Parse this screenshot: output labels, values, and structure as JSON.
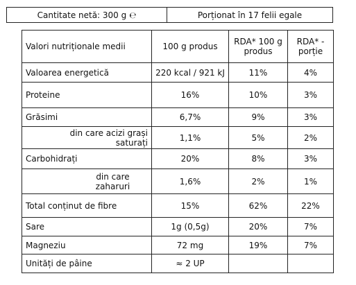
{
  "header": {
    "net_quantity": "Cantitate netă: 300 g ℮",
    "portions": "Porționat în 17 felii egale"
  },
  "table": {
    "columns": [
      "Valori nutriționale medii",
      "100 g produs",
      "RDA* 100 g produs",
      "RDA* - porție"
    ],
    "rows": [
      [
        "Valoarea energetică",
        "220 kcal / 921 kJ",
        "11%",
        "4%"
      ],
      [
        "Proteine",
        "16%",
        "10%",
        "3%"
      ],
      [
        "Grăsimi",
        "6,7%",
        "9%",
        "3%"
      ],
      [
        "din care acizi grași saturați",
        "1,1%",
        "5%",
        "2%"
      ],
      [
        "Carbohidrați",
        "20%",
        "8%",
        "3%"
      ],
      [
        "din care zaharuri",
        "1,6%",
        "2%",
        "1%"
      ],
      [
        "Total conținut de fibre",
        "15%",
        "62%",
        "22%"
      ],
      [
        "Sare",
        "1g (0,5g)",
        "20%",
        "7%"
      ],
      [
        "Magneziu",
        "72 mg",
        "19%",
        "7%"
      ],
      [
        "Unități de pâine",
        "≈ 2 UP"
      ]
    ]
  }
}
